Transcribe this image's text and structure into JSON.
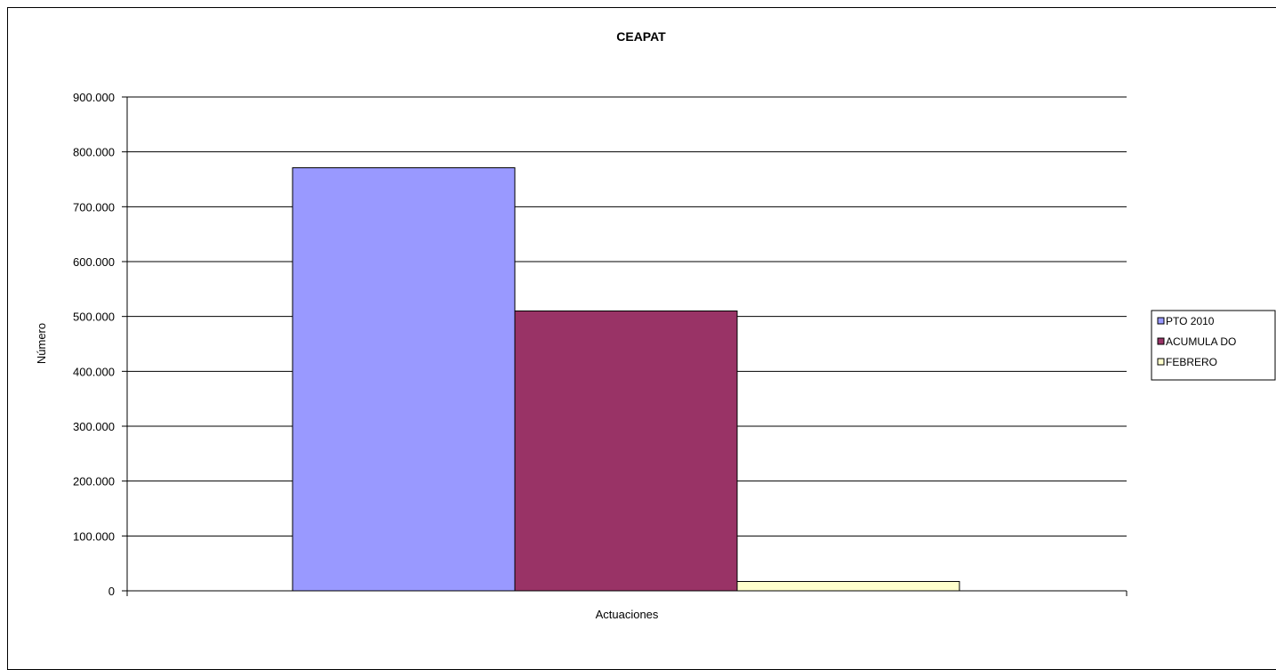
{
  "chart_data": {
    "type": "bar",
    "title": "CEAPAT",
    "xlabel": "Actuaciones",
    "ylabel": "Número",
    "categories": [
      ""
    ],
    "ylim": [
      0,
      900000
    ],
    "ytick_values": [
      0,
      100000,
      200000,
      300000,
      400000,
      500000,
      600000,
      700000,
      800000,
      900000
    ],
    "ytick_labels": [
      "0",
      "100.000",
      "200.000",
      "300.000",
      "400.000",
      "500.000",
      "600.000",
      "700.000",
      "800.000",
      "900.000"
    ],
    "grid": true,
    "legend_position": "right",
    "series": [
      {
        "name": "PTO  2010",
        "values": [
          771000
        ],
        "color": "#9999ff"
      },
      {
        "name": "ACUMULA DO",
        "values": [
          510000
        ],
        "color": "#993366"
      },
      {
        "name": "FEBRERO",
        "values": [
          17000
        ],
        "color": "#ffffcc"
      }
    ]
  }
}
